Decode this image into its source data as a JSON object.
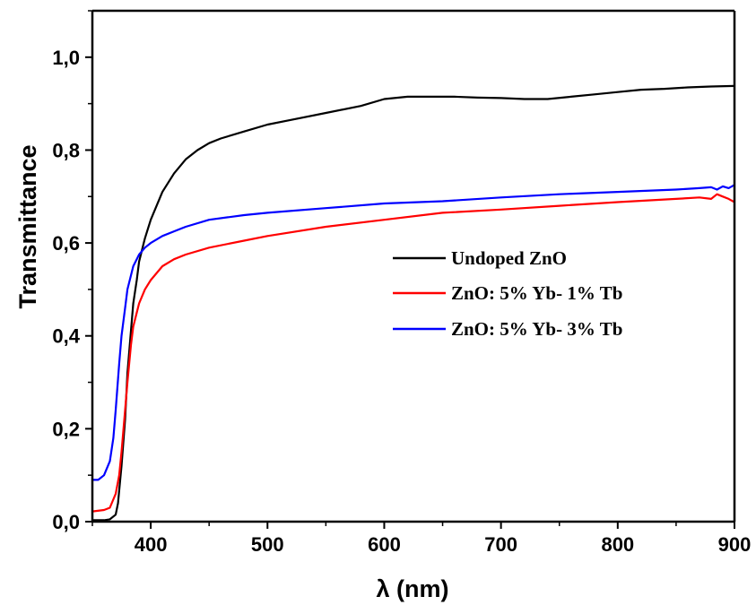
{
  "chart_data": {
    "type": "line",
    "xlabel": "λ (nm)",
    "ylabel": "Transmittance",
    "xlim": [
      350,
      900
    ],
    "ylim": [
      0.0,
      1.1
    ],
    "x_ticks": [
      400,
      500,
      600,
      700,
      800,
      900
    ],
    "y_ticks": [
      0.0,
      0.2,
      0.4,
      0.6,
      0.8,
      1.0
    ],
    "x_tick_labels": [
      "400",
      "500",
      "600",
      "700",
      "800",
      "900"
    ],
    "y_tick_labels": [
      "0,0",
      "0,2",
      "0,4",
      "0,6",
      "0,8",
      "1,0"
    ],
    "grid": false,
    "legend_position": "center-right",
    "series": [
      {
        "name": "Undoped ZnO",
        "color": "#000000",
        "x": [
          350,
          360,
          365,
          370,
          372,
          375,
          378,
          380,
          383,
          385,
          388,
          390,
          395,
          400,
          410,
          420,
          430,
          440,
          450,
          460,
          480,
          500,
          520,
          550,
          580,
          600,
          620,
          640,
          660,
          680,
          700,
          720,
          740,
          760,
          780,
          800,
          820,
          840,
          860,
          880,
          900
        ],
        "y": [
          0.003,
          0.003,
          0.005,
          0.015,
          0.04,
          0.12,
          0.22,
          0.32,
          0.41,
          0.47,
          0.52,
          0.56,
          0.61,
          0.65,
          0.71,
          0.75,
          0.78,
          0.8,
          0.815,
          0.825,
          0.84,
          0.855,
          0.865,
          0.88,
          0.895,
          0.91,
          0.915,
          0.915,
          0.915,
          0.913,
          0.912,
          0.91,
          0.91,
          0.915,
          0.92,
          0.925,
          0.93,
          0.932,
          0.935,
          0.937,
          0.938
        ]
      },
      {
        "name": "ZnO: 5% Yb- 1% Tb",
        "color": "#ff0000",
        "x": [
          350,
          360,
          365,
          370,
          373,
          375,
          378,
          380,
          383,
          385,
          388,
          390,
          395,
          400,
          410,
          420,
          430,
          450,
          480,
          500,
          550,
          600,
          650,
          700,
          750,
          800,
          850,
          870,
          880,
          885,
          890,
          895,
          900
        ],
        "y": [
          0.022,
          0.025,
          0.03,
          0.06,
          0.1,
          0.15,
          0.24,
          0.3,
          0.38,
          0.42,
          0.45,
          0.47,
          0.5,
          0.52,
          0.55,
          0.565,
          0.575,
          0.59,
          0.605,
          0.615,
          0.635,
          0.65,
          0.665,
          0.672,
          0.68,
          0.688,
          0.695,
          0.698,
          0.695,
          0.705,
          0.7,
          0.695,
          0.688
        ]
      },
      {
        "name": "ZnO: 5% Yb- 3% Tb",
        "color": "#0000ff",
        "x": [
          350,
          355,
          360,
          365,
          368,
          370,
          373,
          375,
          378,
          380,
          383,
          385,
          388,
          390,
          395,
          400,
          410,
          420,
          430,
          450,
          480,
          500,
          550,
          600,
          650,
          700,
          750,
          800,
          850,
          870,
          880,
          885,
          890,
          895,
          900
        ],
        "y": [
          0.09,
          0.09,
          0.1,
          0.13,
          0.18,
          0.24,
          0.34,
          0.4,
          0.46,
          0.5,
          0.53,
          0.55,
          0.565,
          0.575,
          0.59,
          0.6,
          0.615,
          0.625,
          0.635,
          0.65,
          0.66,
          0.665,
          0.675,
          0.685,
          0.69,
          0.698,
          0.705,
          0.71,
          0.715,
          0.718,
          0.72,
          0.715,
          0.722,
          0.718,
          0.725
        ]
      }
    ]
  }
}
